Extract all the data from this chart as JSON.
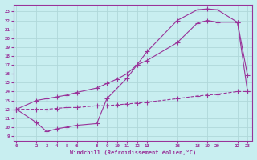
{
  "xlabel": "Windchill (Refroidissement éolien,°C)",
  "bg_color": "#c8eef0",
  "line_color": "#993399",
  "grid_color": "#b0d8da",
  "yticks": [
    9,
    10,
    11,
    12,
    13,
    14,
    15,
    16,
    17,
    18,
    19,
    20,
    21,
    22,
    23
  ],
  "xticks": [
    0,
    2,
    3,
    4,
    5,
    6,
    8,
    9,
    10,
    11,
    12,
    13,
    16,
    18,
    19,
    20,
    22,
    23
  ],
  "ylim": [
    8.5,
    23.8
  ],
  "xlim": [
    -0.3,
    23.5
  ],
  "line1_x": [
    0,
    2,
    3,
    4,
    5,
    6,
    8,
    9,
    11,
    12,
    13,
    16,
    18,
    19,
    20,
    22,
    23
  ],
  "line1_y": [
    12,
    10.5,
    9.5,
    9.8,
    10.0,
    10.2,
    10.4,
    13.2,
    15.5,
    17.0,
    18.5,
    22.0,
    23.2,
    23.3,
    23.2,
    21.8,
    15.8
  ],
  "line2_x": [
    0,
    2,
    3,
    4,
    5,
    6,
    8,
    9,
    10,
    11,
    12,
    13,
    16,
    18,
    19,
    20,
    22,
    23
  ],
  "line2_y": [
    12,
    13.0,
    13.2,
    13.4,
    13.6,
    13.9,
    14.4,
    14.9,
    15.4,
    16.0,
    17.0,
    17.5,
    19.5,
    21.7,
    22.0,
    21.8,
    21.8,
    14.0
  ],
  "line3_x": [
    0,
    2,
    3,
    4,
    5,
    6,
    8,
    9,
    10,
    11,
    12,
    13,
    16,
    18,
    19,
    20,
    22,
    23
  ],
  "line3_y": [
    12,
    12.0,
    12.0,
    12.1,
    12.2,
    12.2,
    12.4,
    12.4,
    12.5,
    12.6,
    12.7,
    12.8,
    13.2,
    13.5,
    13.6,
    13.7,
    14.0,
    14.0
  ]
}
